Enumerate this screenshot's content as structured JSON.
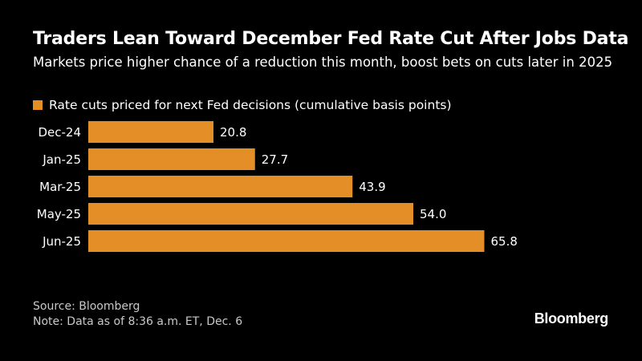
{
  "header": {
    "title": "Traders Lean Toward December Fed Rate Cut After Jobs Data",
    "subtitle": "Markets price higher chance of a reduction this month, boost bets on cuts later in 2025"
  },
  "legend": {
    "label": "Rate cuts priced for next Fed decisions (cumulative basis points)",
    "color": "#e48e27"
  },
  "chart_data": {
    "type": "bar",
    "orientation": "horizontal",
    "title": "Traders Lean Toward December Fed Rate Cut After Jobs Data",
    "categories": [
      "Dec-24",
      "Jan-25",
      "Mar-25",
      "May-25",
      "Jun-25"
    ],
    "series": [
      {
        "name": "Rate cuts priced for next Fed decisions (cumulative basis points)",
        "values": [
          20.8,
          27.7,
          43.9,
          54.0,
          65.8
        ],
        "labels": [
          "20.8",
          "27.7",
          "43.9",
          "54.0",
          "65.8"
        ],
        "color": "#e48e27"
      }
    ],
    "xlim": [
      0,
      70
    ],
    "grid": false,
    "legend_position": "top-left"
  },
  "footer": {
    "source": "Source: Bloomberg",
    "note": "Note: Data as of 8:36 a.m. ET, Dec. 6",
    "logo": "Bloomberg"
  }
}
